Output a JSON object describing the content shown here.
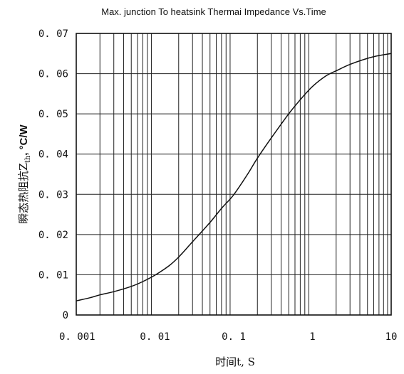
{
  "chart_data": {
    "type": "line",
    "title": "Max. junction To heatsink Thermai Impedance Vs.Time",
    "xlabel": "时间t, S",
    "ylabel": "瞬态热阻抗Z",
    "ylabel_sub": "th",
    "ylabel_unit": ", °C/W",
    "x_scale": "log",
    "xlim": [
      0.001,
      10
    ],
    "ylim": [
      0,
      0.07
    ],
    "grid": true,
    "x_ticks": [
      {
        "value": 0.001,
        "label": "0. 001"
      },
      {
        "value": 0.01,
        "label": "0. 01"
      },
      {
        "value": 0.1,
        "label": "0. 1"
      },
      {
        "value": 1,
        "label": "1"
      },
      {
        "value": 10,
        "label": "10"
      }
    ],
    "y_ticks": [
      {
        "value": 0,
        "label": "0"
      },
      {
        "value": 0.01,
        "label": "0. 01"
      },
      {
        "value": 0.02,
        "label": "0. 02"
      },
      {
        "value": 0.03,
        "label": "0. 03"
      },
      {
        "value": 0.04,
        "label": "0. 04"
      },
      {
        "value": 0.05,
        "label": "0. 05"
      },
      {
        "value": 0.06,
        "label": "0. 06"
      },
      {
        "value": 0.07,
        "label": "0. 07"
      }
    ],
    "series": [
      {
        "x": [
          0.001,
          0.0015,
          0.002,
          0.003,
          0.005,
          0.007,
          0.01,
          0.015,
          0.02,
          0.03,
          0.05,
          0.07,
          0.1,
          0.15,
          0.2,
          0.3,
          0.5,
          0.7,
          1,
          1.5,
          2,
          3,
          5,
          7,
          10
        ],
        "y": [
          0.0035,
          0.0043,
          0.005,
          0.0058,
          0.0071,
          0.0083,
          0.0099,
          0.0122,
          0.0144,
          0.0182,
          0.023,
          0.0265,
          0.0299,
          0.035,
          0.039,
          0.044,
          0.05,
          0.0535,
          0.0568,
          0.0595,
          0.0607,
          0.0623,
          0.0638,
          0.0645,
          0.065
        ]
      }
    ]
  }
}
